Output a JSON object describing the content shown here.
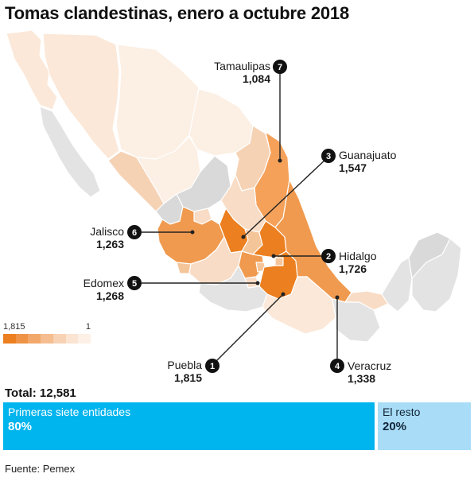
{
  "title": "Tomas clandestinas, enero a octubre 2018",
  "legend": {
    "max_label": "1,815",
    "min_label": "1",
    "colors": [
      "#ec7f1f",
      "#ef9347",
      "#f2a86b",
      "#f5bd90",
      "#f8d2b4",
      "#fbe4d2",
      "#fdf0e6"
    ]
  },
  "states": [
    {
      "rank": "7",
      "name": "Tamaulipas",
      "value": "1,084"
    },
    {
      "rank": "3",
      "name": "Guanajuato",
      "value": "1,547"
    },
    {
      "rank": "6",
      "name": "Jalisco",
      "value": "1,263"
    },
    {
      "rank": "2",
      "name": "Hidalgo",
      "value": "1,726"
    },
    {
      "rank": "5",
      "name": "Edomex",
      "value": "1,268"
    },
    {
      "rank": "1",
      "name": "Puebla",
      "value": "1,815"
    },
    {
      "rank": "4",
      "name": "Veracruz",
      "value": "1,338"
    }
  ],
  "total": {
    "label": "Total: 12,581"
  },
  "share_bar": {
    "segments": [
      {
        "label": "Primeras siete entidades",
        "percent": "80%",
        "fraction": 0.8,
        "color": "#00b4ee"
      },
      {
        "label": "El resto",
        "percent": "20%",
        "fraction": 0.2,
        "color": "#a9ddf7"
      }
    ]
  },
  "source": "Fuente: Pemex",
  "colors": {
    "top_state": "#ec7f1f",
    "mid_state": "#f5c59a",
    "light_state": "#fbe8d8",
    "no_data_state": "#dcdcdc",
    "badge": "#111111"
  }
}
